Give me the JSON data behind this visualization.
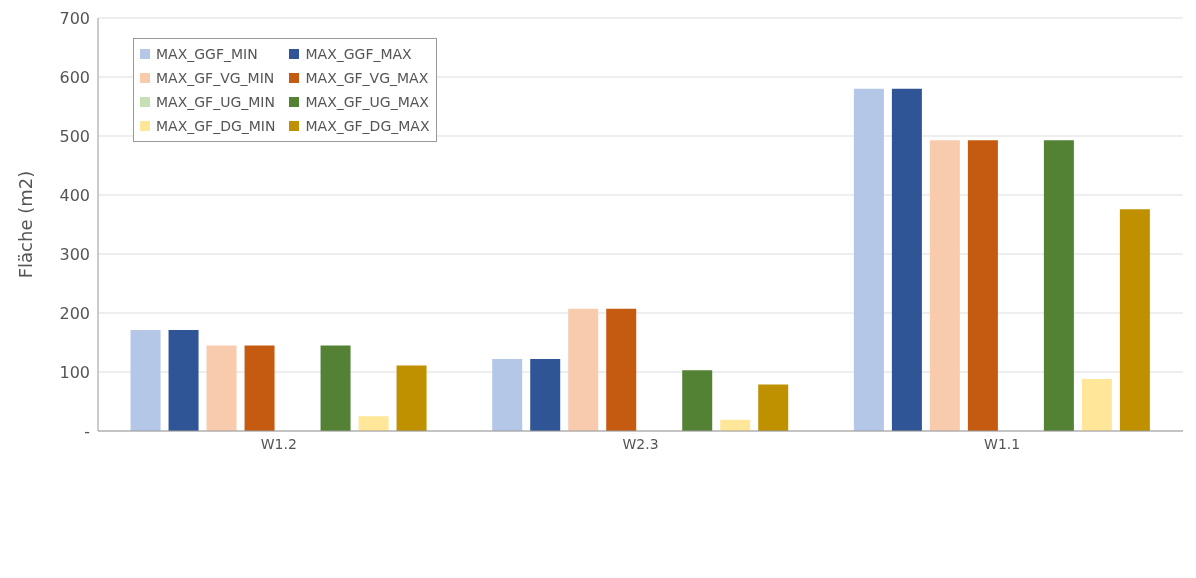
{
  "chart_data": {
    "type": "bar",
    "ylabel": "Fläche (m2)",
    "categories": [
      "W1.2",
      "W2.3",
      "W1.1"
    ],
    "series": [
      {
        "name": "MAX_GGF_MIN",
        "color": "#b4c7e7",
        "values": [
          171,
          122,
          580
        ]
      },
      {
        "name": "MAX_GGF_MAX",
        "color": "#2f5597",
        "values": [
          171,
          122,
          580
        ]
      },
      {
        "name": "MAX_GF_VG_MIN",
        "color": "#f8cbad",
        "values": [
          145,
          207,
          493
        ]
      },
      {
        "name": "MAX_GF_VG_MAX",
        "color": "#c55a11",
        "values": [
          145,
          207,
          493
        ]
      },
      {
        "name": "MAX_GF_UG_MIN",
        "color": "#c5e0b4",
        "values": [
          0,
          0,
          0
        ]
      },
      {
        "name": "MAX_GF_UG_MAX",
        "color": "#548235",
        "values": [
          145,
          103,
          493
        ]
      },
      {
        "name": "MAX_GF_DG_MIN",
        "color": "#ffe699",
        "values": [
          25,
          19,
          88
        ]
      },
      {
        "name": "MAX_GF_DG_MAX",
        "color": "#bf9000",
        "values": [
          111,
          79,
          376
        ]
      }
    ],
    "ylim": [
      0,
      700
    ],
    "yticks": [
      {
        "value": 0,
        "label": "-"
      },
      100,
      200,
      300,
      400,
      500,
      600,
      700
    ],
    "grid": "y",
    "legend": "top left"
  }
}
